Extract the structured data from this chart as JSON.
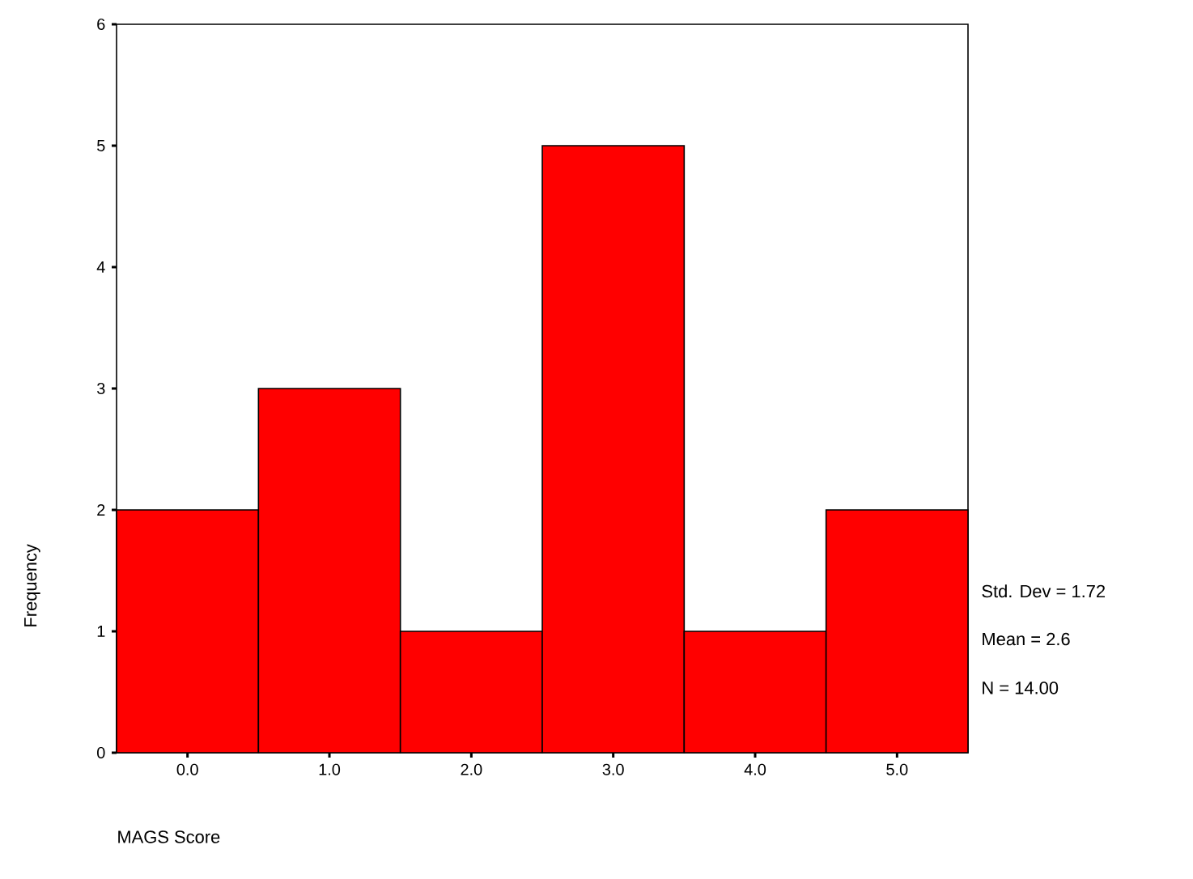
{
  "chart_data": {
    "type": "histogram",
    "xlabel": "MAGS Score",
    "ylabel": "Frequency",
    "bins": [
      -0.5,
      0.5,
      1.5,
      2.5,
      3.5,
      4.5,
      5.5
    ],
    "values": [
      2,
      3,
      1,
      5,
      1,
      2
    ],
    "color": "#ff0000",
    "xlim": [
      -0.5,
      5.5
    ],
    "ylim": [
      0,
      6
    ],
    "xticks": [
      {
        "value": 0,
        "label": "0.0"
      },
      {
        "value": 1,
        "label": "1.0"
      },
      {
        "value": 2,
        "label": "2.0"
      },
      {
        "value": 3,
        "label": "3.0"
      },
      {
        "value": 4,
        "label": "4.0"
      },
      {
        "value": 5,
        "label": "5.0"
      }
    ],
    "yticks": [
      0,
      1,
      2,
      3,
      4,
      5,
      6
    ],
    "annotations": [
      "Std. Dev = 1.72",
      "Mean = 2.6",
      "N = 14.00"
    ]
  }
}
